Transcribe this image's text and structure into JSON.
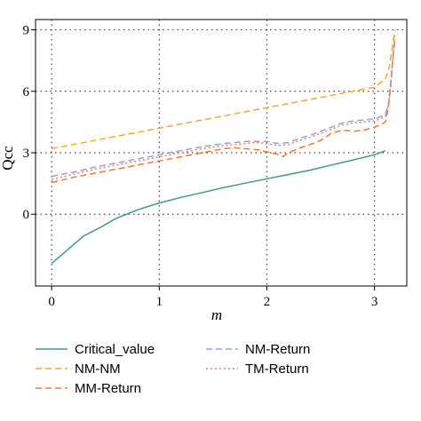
{
  "chart_data": {
    "type": "line",
    "title": "",
    "xlabel": "m",
    "ylabel": "Qcc",
    "xlim": [
      -0.15,
      3.3
    ],
    "ylim": [
      -3.5,
      9.5
    ],
    "xticks": [
      0,
      1,
      2,
      3
    ],
    "yticks": [
      0,
      3,
      6,
      9
    ],
    "grid": true,
    "grid_style": "dotted",
    "legend_position": "bottom",
    "colors": {
      "Critical_value": "#3a9e78",
      "NM-NM": "#f5a830",
      "MM-Return": "#f07b2a",
      "NM-Return": "#8aa7cf",
      "TM-Return": "#ee7a6a"
    },
    "series": [
      {
        "name": "Critical_value",
        "style": "solid",
        "x": [
          0,
          0.1,
          0.2,
          0.3,
          0.45,
          0.6,
          0.8,
          1.0,
          1.2,
          1.4,
          1.6,
          1.8,
          2.0,
          2.2,
          2.4,
          2.6,
          2.8,
          3.0,
          3.1
        ],
        "y": [
          -2.4,
          -1.95,
          -1.5,
          -1.05,
          -0.65,
          -0.2,
          0.22,
          0.55,
          0.82,
          1.06,
          1.3,
          1.52,
          1.73,
          1.94,
          2.15,
          2.4,
          2.65,
          2.9,
          3.1
        ]
      },
      {
        "name": "NM-NM",
        "style": "dashed",
        "x": [
          0,
          0.25,
          0.5,
          0.75,
          1.0,
          1.25,
          1.5,
          1.75,
          2.0,
          2.25,
          2.5,
          2.75,
          3.0,
          3.1,
          3.13,
          3.15,
          3.17,
          3.19
        ],
        "y": [
          3.2,
          3.45,
          3.7,
          3.95,
          4.2,
          4.45,
          4.7,
          4.95,
          5.2,
          5.45,
          5.7,
          5.95,
          6.2,
          6.6,
          7.0,
          7.6,
          8.3,
          9.0
        ]
      },
      {
        "name": "MM-Return",
        "style": "dashed",
        "x": [
          0,
          0.2,
          0.4,
          0.6,
          0.8,
          1.0,
          1.2,
          1.4,
          1.6,
          1.7,
          1.8,
          1.9,
          2.0,
          2.1,
          2.15,
          2.2,
          2.3,
          2.4,
          2.5,
          2.6,
          2.7,
          2.8,
          2.9,
          3.0,
          3.05,
          3.1,
          3.13,
          3.15,
          3.17,
          3.19
        ],
        "y": [
          1.55,
          1.8,
          2.0,
          2.2,
          2.4,
          2.6,
          2.8,
          3.0,
          3.2,
          3.25,
          3.2,
          3.15,
          3.05,
          2.92,
          2.82,
          3.0,
          3.22,
          3.4,
          3.6,
          3.95,
          4.1,
          4.05,
          4.1,
          4.25,
          4.35,
          4.5,
          5.2,
          6.2,
          7.5,
          8.6
        ]
      },
      {
        "name": "NM-Return",
        "style": "dashed",
        "x": [
          0,
          0.2,
          0.4,
          0.6,
          0.8,
          1.0,
          1.2,
          1.4,
          1.6,
          1.8,
          1.9,
          2.0,
          2.1,
          2.2,
          2.3,
          2.4,
          2.5,
          2.6,
          2.7,
          2.8,
          2.9,
          3.0,
          3.05,
          3.1,
          3.13,
          3.15,
          3.17,
          3.19
        ],
        "y": [
          1.85,
          2.05,
          2.3,
          2.5,
          2.7,
          2.9,
          3.1,
          3.3,
          3.45,
          3.55,
          3.55,
          3.55,
          3.45,
          3.5,
          3.7,
          3.85,
          4.05,
          4.25,
          4.45,
          4.55,
          4.6,
          4.65,
          4.75,
          4.85,
          5.4,
          6.4,
          7.6,
          8.7
        ]
      },
      {
        "name": "TM-Return",
        "style": "dotted",
        "x": [
          0,
          0.2,
          0.4,
          0.6,
          0.8,
          1.0,
          1.2,
          1.4,
          1.6,
          1.8,
          1.9,
          2.0,
          2.1,
          2.2,
          2.3,
          2.4,
          2.5,
          2.6,
          2.7,
          2.8,
          2.9,
          3.0,
          3.05,
          3.1,
          3.13,
          3.15,
          3.17,
          3.19
        ],
        "y": [
          1.7,
          1.95,
          2.2,
          2.4,
          2.6,
          2.8,
          3.0,
          3.2,
          3.35,
          3.45,
          3.5,
          3.45,
          3.35,
          3.4,
          3.6,
          3.75,
          3.95,
          4.15,
          4.35,
          4.45,
          4.5,
          4.55,
          4.65,
          4.75,
          5.3,
          6.3,
          7.5,
          8.6
        ]
      }
    ],
    "legend": [
      {
        "name": "Critical_value",
        "label": "Critical_value",
        "style": "solid"
      },
      {
        "name": "NM-Return",
        "label": "NM-Return",
        "style": "dashed"
      },
      {
        "name": "NM-NM",
        "label": "NM-NM",
        "style": "dashed"
      },
      {
        "name": "TM-Return",
        "label": "TM-Return",
        "style": "dotted"
      },
      {
        "name": "MM-Return",
        "label": "MM-Return",
        "style": "dashed"
      }
    ]
  }
}
